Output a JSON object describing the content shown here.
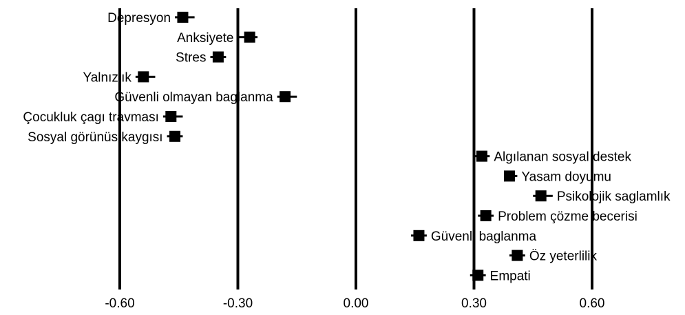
{
  "chart_data": {
    "type": "scatter",
    "title": "",
    "xlabel": "",
    "ylabel": "",
    "xlim": [
      -0.6,
      0.6
    ],
    "xticks": [
      -0.6,
      -0.3,
      0.0,
      0.3,
      0.6
    ],
    "xtick_labels": [
      "-0.60",
      "-0.30",
      "0.00",
      "0.30",
      "0.60"
    ],
    "grid": "vertical lines at each tick",
    "legend": "none",
    "marker": "filled square with horizontal error bar",
    "points": [
      {
        "label": "Depresyon",
        "value": -0.44,
        "ci": [
          -0.46,
          -0.41
        ],
        "label_side": "left"
      },
      {
        "label": "Anksiyete",
        "value": -0.27,
        "ci": [
          -0.3,
          -0.25
        ],
        "label_side": "left"
      },
      {
        "label": "Stres",
        "value": -0.35,
        "ci": [
          -0.37,
          -0.33
        ],
        "label_side": "left"
      },
      {
        "label": "Yalnızlık",
        "value": -0.54,
        "ci": [
          -0.56,
          -0.51
        ],
        "label_side": "left"
      },
      {
        "label": "Güvenli olmayan baglanma",
        "value": -0.18,
        "ci": [
          -0.2,
          -0.15
        ],
        "label_side": "left"
      },
      {
        "label": "Çocukluk çagı travması",
        "value": -0.47,
        "ci": [
          -0.49,
          -0.44
        ],
        "label_side": "left"
      },
      {
        "label": "Sosyal görünüs kaygısı",
        "value": -0.46,
        "ci": [
          -0.48,
          -0.44
        ],
        "label_side": "left"
      },
      {
        "label": "Algılanan sosyal destek",
        "value": 0.32,
        "ci": [
          0.3,
          0.34
        ],
        "label_side": "right"
      },
      {
        "label": "Yasam doyumu",
        "value": 0.39,
        "ci": [
          0.38,
          0.41
        ],
        "label_side": "right"
      },
      {
        "label": "Psikolojik saglamlık",
        "value": 0.47,
        "ci": [
          0.45,
          0.5
        ],
        "label_side": "right"
      },
      {
        "label": "Problem çözme becerisi",
        "value": 0.33,
        "ci": [
          0.31,
          0.35
        ],
        "label_side": "right"
      },
      {
        "label": "Güvenli baglanma",
        "value": 0.16,
        "ci": [
          0.14,
          0.18
        ],
        "label_side": "right"
      },
      {
        "label": "Öz yeterlilik",
        "value": 0.41,
        "ci": [
          0.39,
          0.43
        ],
        "label_side": "right"
      },
      {
        "label": "Empati",
        "value": 0.31,
        "ci": [
          0.29,
          0.33
        ],
        "label_side": "right"
      }
    ]
  }
}
